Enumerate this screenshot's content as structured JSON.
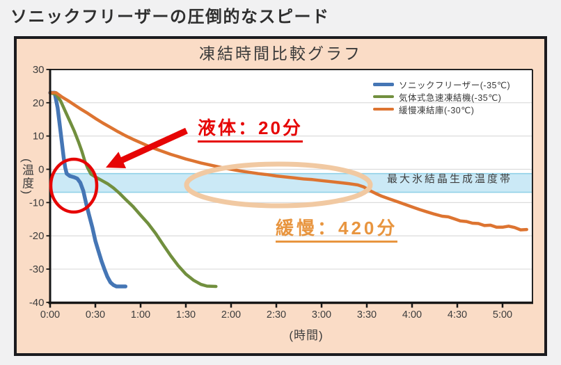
{
  "page": {
    "title": "ソニックフリーザーの圧倒的なスピード"
  },
  "colors": {
    "page_background": "#f1f1f2",
    "panel_background": "#fadcc6",
    "panel_border": "#1b1b1f",
    "plot_background": "#ffffff",
    "gridline": "#dcdcdc",
    "axis": "#161616",
    "band_fill": "#cbe9f6",
    "band_edge": "#90d1e8",
    "series_sonic_blue": "#4576b5",
    "series_gas_green": "#718f3e",
    "series_slow_orange": "#dd7431",
    "annotation_red": "#e60505",
    "annotation_orange_text": "#e8953f",
    "annotation_orange_ellipse": "#f1c9a2"
  },
  "chart_data": {
    "type": "line",
    "title": "凍結時間比較グラフ",
    "xlabel": "(時間)",
    "ylabel": "(温度)",
    "x_unit": "hours:minutes shown, data stored in minutes",
    "xlim_minutes": [
      0,
      320
    ],
    "ylim": [
      -40,
      30
    ],
    "x_tick_minutes": [
      0,
      30,
      60,
      90,
      120,
      150,
      180,
      210,
      240,
      270,
      300
    ],
    "x_tick_labels": [
      "0:00",
      "0:30",
      "1:00",
      "1:30",
      "2:00",
      "2:30",
      "3:00",
      "3:30",
      "4:00",
      "4:30",
      "5:00"
    ],
    "y_ticks": [
      30,
      20,
      10,
      0,
      -10,
      -20,
      -30,
      -40
    ],
    "y_gridlines": [
      20,
      10,
      0,
      -10,
      -20,
      -30
    ],
    "grid": "horizontal only",
    "legend_position": "top-right inside plot",
    "band": {
      "label": "最大氷結晶生成温度帯",
      "temp_top": -1.3,
      "temp_bottom": -6.9,
      "fill": "#cbe9f6",
      "edge": "#90d1e8"
    },
    "series": [
      {
        "name": "ソニックフリーザー(-35℃)",
        "color": "#4576b5",
        "points": [
          [
            0,
            23
          ],
          [
            3,
            23
          ],
          [
            5,
            18.5
          ],
          [
            7,
            11
          ],
          [
            9,
            3.5
          ],
          [
            10,
            0.5
          ],
          [
            11,
            -1.3
          ],
          [
            13,
            -2
          ],
          [
            16,
            -2.4
          ],
          [
            18,
            -2.8
          ],
          [
            20,
            -4
          ],
          [
            22,
            -6.5
          ],
          [
            24,
            -10.5
          ],
          [
            26,
            -14
          ],
          [
            28,
            -17.5
          ],
          [
            30,
            -21.5
          ],
          [
            32,
            -24.5
          ],
          [
            34,
            -27.5
          ],
          [
            36,
            -30
          ],
          [
            38,
            -32.3
          ],
          [
            40,
            -34
          ],
          [
            42,
            -34.8
          ],
          [
            44,
            -35.2
          ],
          [
            50,
            -35.2
          ]
        ]
      },
      {
        "name": "気体式急速凍結機(-35℃)",
        "color": "#718f3e",
        "points": [
          [
            0,
            23
          ],
          [
            4,
            22.5
          ],
          [
            7,
            20.5
          ],
          [
            10,
            17.5
          ],
          [
            13,
            14.5
          ],
          [
            16,
            11.5
          ],
          [
            19,
            8
          ],
          [
            21,
            5.5
          ],
          [
            23,
            2.5
          ],
          [
            25,
            0.3
          ],
          [
            27,
            -1.4
          ],
          [
            30,
            -2.3
          ],
          [
            34,
            -3.3
          ],
          [
            38,
            -4.3
          ],
          [
            42,
            -5.6
          ],
          [
            46,
            -7.2
          ],
          [
            50,
            -9
          ],
          [
            55,
            -11.2
          ],
          [
            60,
            -13.8
          ],
          [
            65,
            -16.3
          ],
          [
            70,
            -19.3
          ],
          [
            75,
            -22.7
          ],
          [
            80,
            -26
          ],
          [
            85,
            -29
          ],
          [
            90,
            -31.5
          ],
          [
            95,
            -33.3
          ],
          [
            100,
            -34.6
          ],
          [
            104,
            -35.1
          ],
          [
            110,
            -35.2
          ]
        ]
      },
      {
        "name": "緩慢凍結庫(-30℃)",
        "color": "#dd7431",
        "points": [
          [
            0,
            23
          ],
          [
            4,
            23
          ],
          [
            8,
            21.7
          ],
          [
            12,
            20.6
          ],
          [
            16,
            19.4
          ],
          [
            20,
            18.2
          ],
          [
            25,
            16.8
          ],
          [
            30,
            15.3
          ],
          [
            35,
            13.9
          ],
          [
            40,
            12.6
          ],
          [
            45,
            11.3
          ],
          [
            50,
            10.1
          ],
          [
            55,
            9
          ],
          [
            60,
            8
          ],
          [
            65,
            7
          ],
          [
            70,
            6.1
          ],
          [
            75,
            5.3
          ],
          [
            80,
            4.5
          ],
          [
            85,
            3.8
          ],
          [
            90,
            3.1
          ],
          [
            95,
            2.5
          ],
          [
            100,
            1.9
          ],
          [
            105,
            1.4
          ],
          [
            110,
            0.9
          ],
          [
            115,
            0.4
          ],
          [
            120,
            0
          ],
          [
            126,
            -0.5
          ],
          [
            132,
            -0.9
          ],
          [
            138,
            -1.3
          ],
          [
            144,
            -1.6
          ],
          [
            150,
            -2
          ],
          [
            156,
            -2.3
          ],
          [
            162,
            -2.6
          ],
          [
            168,
            -2.9
          ],
          [
            174,
            -3.1
          ],
          [
            180,
            -3.4
          ],
          [
            186,
            -3.7
          ],
          [
            192,
            -4
          ],
          [
            198,
            -4.3
          ],
          [
            204,
            -4.7
          ],
          [
            208,
            -5.3
          ],
          [
            212,
            -6.4
          ],
          [
            216,
            -7.3
          ],
          [
            220,
            -8.1
          ],
          [
            225,
            -8.9
          ],
          [
            230,
            -9.7
          ],
          [
            235,
            -10.5
          ],
          [
            240,
            -11.3
          ],
          [
            245,
            -12.1
          ],
          [
            250,
            -12.8
          ],
          [
            255,
            -13.5
          ],
          [
            260,
            -14.1
          ],
          [
            264,
            -14.3
          ],
          [
            268,
            -14.9
          ],
          [
            272,
            -15.5
          ],
          [
            276,
            -15.7
          ],
          [
            280,
            -16.2
          ],
          [
            284,
            -16.3
          ],
          [
            288,
            -16.9
          ],
          [
            292,
            -16.8
          ],
          [
            296,
            -17.4
          ],
          [
            300,
            -17.4
          ],
          [
            304,
            -17.1
          ],
          [
            308,
            -17.5
          ],
          [
            312,
            -18.2
          ],
          [
            316,
            -18.1
          ]
        ]
      }
    ],
    "annotations": [
      {
        "type": "callout",
        "text": "液体：20分",
        "color": "#e60505",
        "marker": "red circle around sonic-freezer line in ice-crystal band plus red arrow",
        "underlined": true
      },
      {
        "type": "highlight",
        "text": "緩慢：420分",
        "color": "#e8953f",
        "marker": "orange ellipse around slow-freezer dwell in ice-crystal band",
        "underlined": true
      }
    ]
  }
}
